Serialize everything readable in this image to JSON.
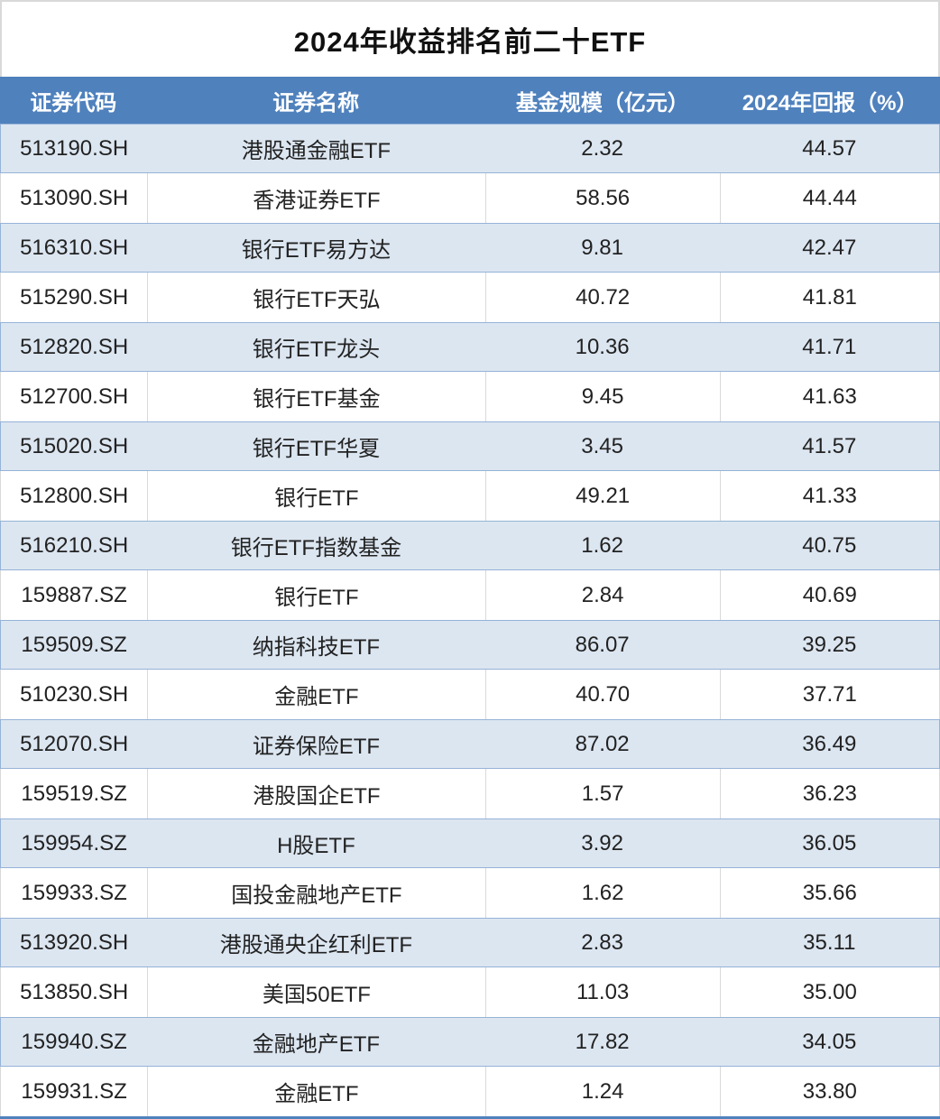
{
  "chart_data": {
    "type": "table",
    "title": "2024年收益排名前二十ETF",
    "columns": [
      "证券代码",
      "证券名称",
      "基金规模（亿元）",
      "2024年回报（%）"
    ],
    "rows": [
      [
        "513190.SH",
        "港股通金融ETF",
        "2.32",
        "44.57"
      ],
      [
        "513090.SH",
        "香港证券ETF",
        "58.56",
        "44.44"
      ],
      [
        "516310.SH",
        "银行ETF易方达",
        "9.81",
        "42.47"
      ],
      [
        "515290.SH",
        "银行ETF天弘",
        "40.72",
        "41.81"
      ],
      [
        "512820.SH",
        "银行ETF龙头",
        "10.36",
        "41.71"
      ],
      [
        "512700.SH",
        "银行ETF基金",
        "9.45",
        "41.63"
      ],
      [
        "515020.SH",
        "银行ETF华夏",
        "3.45",
        "41.57"
      ],
      [
        "512800.SH",
        "银行ETF",
        "49.21",
        "41.33"
      ],
      [
        "516210.SH",
        "银行ETF指数基金",
        "1.62",
        "40.75"
      ],
      [
        "159887.SZ",
        "银行ETF",
        "2.84",
        "40.69"
      ],
      [
        "159509.SZ",
        "纳指科技ETF",
        "86.07",
        "39.25"
      ],
      [
        "510230.SH",
        "金融ETF",
        "40.70",
        "37.71"
      ],
      [
        "512070.SH",
        "证券保险ETF",
        "87.02",
        "36.49"
      ],
      [
        "159519.SZ",
        "港股国企ETF",
        "1.57",
        "36.23"
      ],
      [
        "159954.SZ",
        "H股ETF",
        "3.92",
        "36.05"
      ],
      [
        "159933.SZ",
        "国投金融地产ETF",
        "1.62",
        "35.66"
      ],
      [
        "513920.SH",
        "港股通央企红利ETF",
        "2.83",
        "35.11"
      ],
      [
        "513850.SH",
        "美国50ETF",
        "11.03",
        "35.00"
      ],
      [
        "159940.SZ",
        "金融地产ETF",
        "17.82",
        "34.05"
      ],
      [
        "159931.SZ",
        "金融ETF",
        "1.24",
        "33.80"
      ]
    ],
    "layout": {
      "banded_rows": true,
      "first_band": "blue",
      "column_align": "center"
    },
    "colors": {
      "header_bg": "#4F81BD",
      "header_text": "#FFFFFF",
      "band_bg": "#DCE6F1",
      "band_border": "#95B3D7",
      "plain_divider": "#D9D9D9",
      "bottom_border": "#4F81BD",
      "title_text": "#111111"
    }
  }
}
